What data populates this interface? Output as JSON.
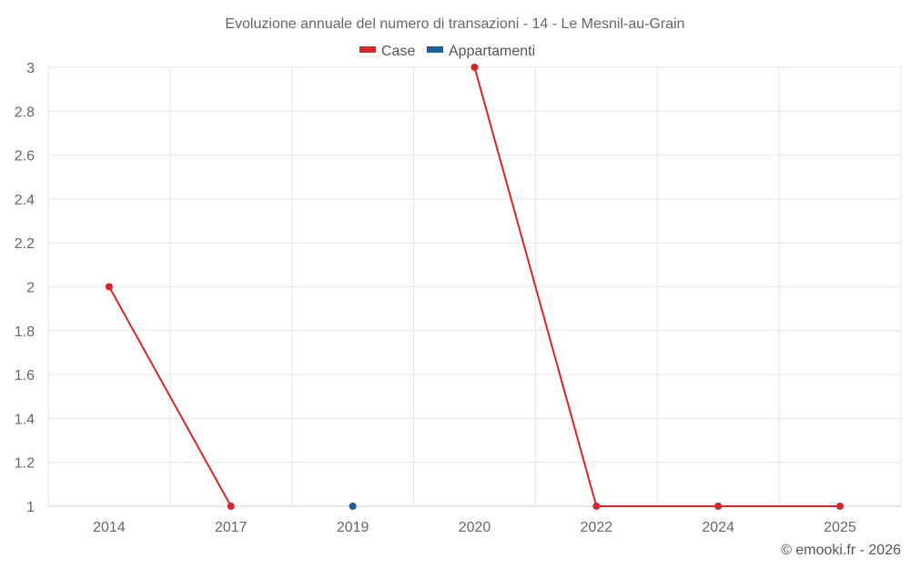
{
  "colors": {
    "case": "#d62728",
    "appartamenti": "#1f5f99"
  },
  "credit": "© emooki.fr - 2026",
  "chart_data": {
    "type": "line",
    "title": "Evoluzione annuale del numero di transazioni - 14 - Le Mesnil-au-Grain",
    "categories": [
      "2014",
      "2017",
      "2019",
      "2020",
      "2022",
      "2024",
      "2025"
    ],
    "ylim": [
      1,
      3
    ],
    "yticks": [
      1,
      1.2,
      1.4,
      1.6,
      1.8,
      2,
      2.2,
      2.4,
      2.6,
      2.8,
      3
    ],
    "grid": true,
    "legend_position": "top-center",
    "series": [
      {
        "name": "Case",
        "color": "#d62728",
        "values": [
          2,
          1,
          null,
          3,
          1,
          1,
          1
        ]
      },
      {
        "name": "Appartamenti",
        "color": "#1f5f99",
        "values": [
          null,
          null,
          1,
          null,
          null,
          null,
          null
        ]
      }
    ]
  }
}
